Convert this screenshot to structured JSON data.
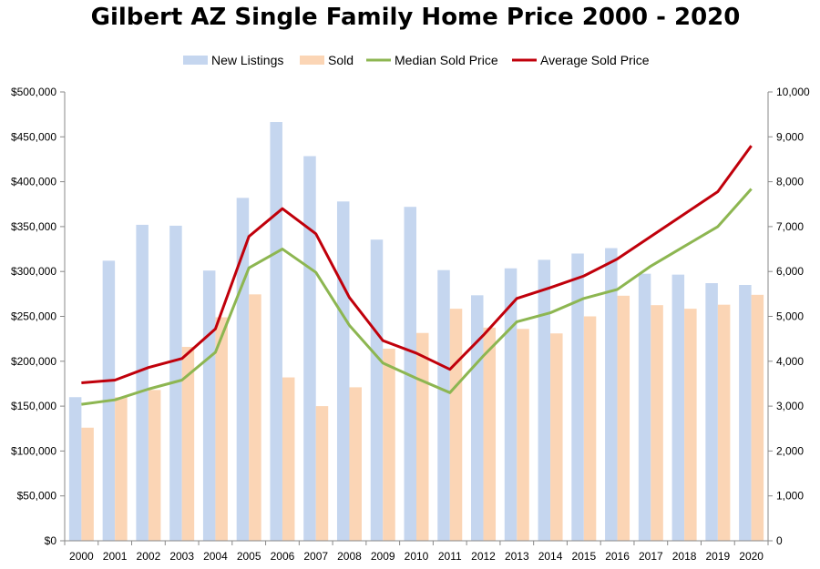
{
  "chart_data": {
    "type": "bar",
    "title": "Gilbert AZ Single Family Home Price 2000 - 2020",
    "categories": [
      "2000",
      "2001",
      "2002",
      "2003",
      "2004",
      "2005",
      "2006",
      "2007",
      "2008",
      "2009",
      "2010",
      "2011",
      "2012",
      "2013",
      "2014",
      "2015",
      "2016",
      "2017",
      "2018",
      "2019",
      "2020"
    ],
    "y_left": {
      "range": [
        0,
        500000
      ],
      "ticks": [
        "$0",
        "$50,000",
        "$100,000",
        "$150,000",
        "$200,000",
        "$250,000",
        "$300,000",
        "$350,000",
        "$400,000",
        "$450,000",
        "$500,000"
      ]
    },
    "y_right": {
      "range": [
        0,
        10000
      ],
      "ticks": [
        "0",
        "1,000",
        "2,000",
        "3,000",
        "4,000",
        "5,000",
        "6,000",
        "7,000",
        "8,000",
        "9,000",
        "10,000"
      ]
    },
    "grid": false,
    "legend_position": "top",
    "series": [
      {
        "name": "New Listings",
        "kind": "bar",
        "axis": "right",
        "color": "#c5d6ef",
        "values": [
          3200,
          6240,
          7040,
          7020,
          6020,
          7640,
          9330,
          8570,
          7560,
          6710,
          7440,
          6030,
          5470,
          6070,
          6260,
          6400,
          6520,
          5950,
          5930,
          5740,
          5700
        ]
      },
      {
        "name": "Sold",
        "kind": "bar",
        "axis": "right",
        "color": "#fbd5b5",
        "values": [
          2520,
          3200,
          3360,
          4320,
          4980,
          5490,
          3640,
          3000,
          3420,
          4280,
          4630,
          5170,
          4750,
          4720,
          4620,
          5000,
          5460,
          5250,
          5170,
          5260,
          5480
        ]
      },
      {
        "name": "Median Sold Price",
        "kind": "line",
        "axis": "left",
        "color": "#8db651",
        "values": [
          152000,
          157000,
          169000,
          179000,
          210000,
          304000,
          325000,
          299000,
          240000,
          198000,
          181000,
          165000,
          206000,
          244000,
          254000,
          270000,
          280000,
          306000,
          328000,
          350000,
          392000
        ]
      },
      {
        "name": "Average Sold Price",
        "kind": "line",
        "axis": "left",
        "color": "#c0000b",
        "values": [
          176000,
          179000,
          193000,
          203000,
          236000,
          339000,
          370000,
          342000,
          271000,
          223000,
          209000,
          191000,
          229000,
          270000,
          282000,
          295000,
          314000,
          339000,
          364000,
          389000,
          440000
        ]
      }
    ]
  }
}
